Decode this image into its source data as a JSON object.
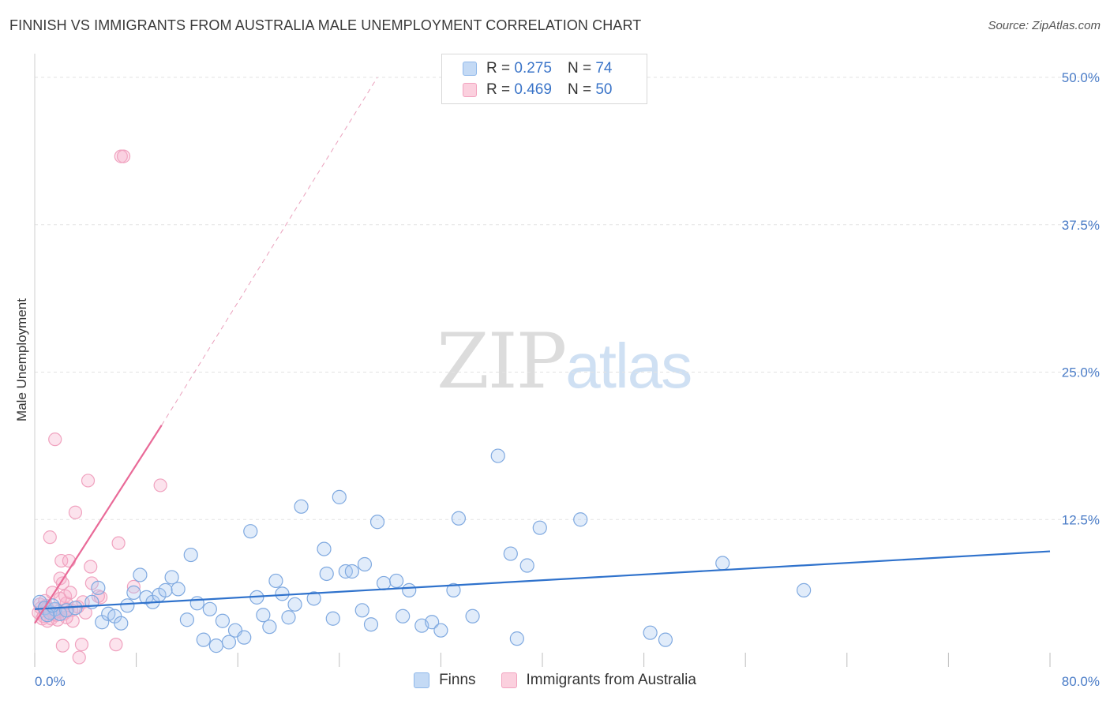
{
  "title": "FINNISH VS IMMIGRANTS FROM AUSTRALIA MALE UNEMPLOYMENT CORRELATION CHART",
  "source": "Source: ZipAtlas.com",
  "watermark": {
    "zip": "ZIP",
    "atlas": "atlas"
  },
  "colors": {
    "finns": "#8fb8ea",
    "finns_line": "#2f72cc",
    "immigrants": "#f2a3bf",
    "immigrants_line": "#e96a98",
    "axis_text": "#4a7cc7"
  },
  "legend": {
    "rows": [
      {
        "r_label": "R =",
        "r_value": "0.275",
        "n_label": "N =",
        "n_value": "74"
      },
      {
        "r_label": "R =",
        "r_value": "0.469",
        "n_label": "N =",
        "n_value": "50"
      }
    ]
  },
  "bottom_legend": {
    "finns": "Finns",
    "immigrants": "Immigrants from Australia"
  },
  "chart_data": {
    "type": "scatter",
    "xlabel": "",
    "ylabel": "Male Unemployment",
    "xlim": [
      0,
      80
    ],
    "ylim": [
      0,
      50
    ],
    "y_ticks": [
      12.5,
      25.0,
      37.5,
      50.0
    ],
    "y_tick_labels": [
      "12.5%",
      "25.0%",
      "37.5%",
      "50.0%"
    ],
    "x_tick_labels": {
      "min": "0.0%",
      "max": "80.0%"
    },
    "grid": true,
    "series": [
      {
        "name": "Finns",
        "r": 0.275,
        "n": 74,
        "trend": {
          "x": [
            0,
            80
          ],
          "y": [
            4.9,
            9.8
          ],
          "dashed": false
        },
        "points": [
          [
            0.4,
            5.5
          ],
          [
            0.8,
            5.0
          ],
          [
            1.2,
            4.6
          ],
          [
            1.6,
            4.9
          ],
          [
            2.0,
            4.5
          ],
          [
            2.5,
            4.8
          ],
          [
            3.2,
            5.0
          ],
          [
            4.5,
            5.5
          ],
          [
            5.0,
            6.7
          ],
          [
            5.3,
            3.8
          ],
          [
            5.8,
            4.5
          ],
          [
            6.3,
            4.3
          ],
          [
            6.8,
            3.7
          ],
          [
            7.3,
            5.2
          ],
          [
            7.8,
            6.3
          ],
          [
            8.3,
            7.8
          ],
          [
            8.8,
            5.9
          ],
          [
            9.3,
            5.5
          ],
          [
            9.8,
            6.1
          ],
          [
            10.3,
            6.5
          ],
          [
            10.8,
            7.6
          ],
          [
            11.3,
            6.6
          ],
          [
            12.0,
            4.0
          ],
          [
            12.3,
            9.5
          ],
          [
            12.8,
            5.4
          ],
          [
            13.3,
            2.3
          ],
          [
            13.8,
            4.9
          ],
          [
            14.3,
            1.8
          ],
          [
            14.8,
            3.9
          ],
          [
            15.3,
            2.1
          ],
          [
            15.8,
            3.1
          ],
          [
            16.5,
            2.5
          ],
          [
            17.0,
            11.5
          ],
          [
            17.5,
            5.9
          ],
          [
            18.0,
            4.4
          ],
          [
            18.5,
            3.4
          ],
          [
            19.0,
            7.3
          ],
          [
            19.5,
            6.2
          ],
          [
            20.0,
            4.2
          ],
          [
            20.5,
            5.3
          ],
          [
            21.0,
            13.6
          ],
          [
            22.0,
            5.8
          ],
          [
            22.8,
            10.0
          ],
          [
            23.0,
            7.9
          ],
          [
            23.5,
            4.1
          ],
          [
            24.0,
            14.4
          ],
          [
            24.5,
            8.1
          ],
          [
            25.0,
            8.1
          ],
          [
            25.8,
            4.8
          ],
          [
            26.0,
            8.7
          ],
          [
            26.5,
            3.6
          ],
          [
            27.0,
            12.3
          ],
          [
            27.5,
            7.1
          ],
          [
            28.5,
            7.3
          ],
          [
            29.0,
            4.3
          ],
          [
            29.5,
            6.5
          ],
          [
            30.5,
            3.5
          ],
          [
            31.3,
            3.8
          ],
          [
            32.0,
            3.1
          ],
          [
            33.0,
            6.5
          ],
          [
            33.4,
            12.6
          ],
          [
            34.5,
            4.3
          ],
          [
            36.5,
            17.9
          ],
          [
            37.5,
            9.6
          ],
          [
            38.0,
            2.4
          ],
          [
            38.8,
            8.6
          ],
          [
            39.8,
            11.8
          ],
          [
            43.0,
            12.5
          ],
          [
            48.5,
            2.9
          ],
          [
            49.7,
            2.3
          ],
          [
            54.2,
            8.8
          ],
          [
            60.6,
            6.5
          ],
          [
            1.0,
            4.4
          ],
          [
            1.4,
            5.2
          ]
        ]
      },
      {
        "name": "Immigrants from Australia",
        "r": 0.469,
        "n": 50,
        "trend": {
          "x": [
            0,
            10.0
          ],
          "y": [
            3.7,
            20.5
          ],
          "dashed": false,
          "extension": {
            "x": [
              10.0,
              27.0
            ],
            "y": [
              20.5,
              50.0
            ],
            "dashed": true
          }
        },
        "points": [
          [
            0.3,
            4.6
          ],
          [
            0.5,
            5.0
          ],
          [
            0.7,
            4.3
          ],
          [
            0.9,
            5.2
          ],
          [
            1.1,
            4.8
          ],
          [
            1.3,
            4.1
          ],
          [
            1.5,
            4.9
          ],
          [
            1.6,
            19.3
          ],
          [
            1.7,
            4.4
          ],
          [
            1.9,
            4.7
          ],
          [
            2.0,
            7.5
          ],
          [
            2.1,
            9.0
          ],
          [
            2.2,
            1.8
          ],
          [
            2.3,
            4.5
          ],
          [
            2.4,
            6.0
          ],
          [
            2.5,
            5.4
          ],
          [
            2.6,
            4.9
          ],
          [
            2.7,
            9.0
          ],
          [
            2.8,
            6.3
          ],
          [
            2.9,
            4.8
          ],
          [
            3.0,
            3.9
          ],
          [
            3.2,
            13.1
          ],
          [
            3.5,
            0.8
          ],
          [
            3.7,
            1.9
          ],
          [
            4.2,
            15.8
          ],
          [
            4.4,
            8.5
          ],
          [
            4.5,
            7.1
          ],
          [
            5.2,
            5.9
          ],
          [
            6.4,
            1.9
          ],
          [
            6.6,
            10.5
          ],
          [
            6.8,
            43.3
          ],
          [
            7.0,
            43.3
          ],
          [
            7.8,
            6.8
          ],
          [
            9.9,
            15.4
          ],
          [
            0.4,
            5.3
          ],
          [
            0.6,
            4.1
          ],
          [
            0.8,
            5.6
          ],
          [
            1.0,
            3.9
          ],
          [
            1.2,
            11.0
          ],
          [
            1.4,
            6.3
          ],
          [
            1.8,
            4.0
          ],
          [
            2.0,
            5.8
          ],
          [
            2.2,
            7.1
          ],
          [
            2.5,
            4.2
          ],
          [
            3.4,
            5.1
          ],
          [
            3.8,
            5.5
          ],
          [
            4.0,
            4.6
          ],
          [
            5.0,
            6.0
          ],
          [
            1.0,
            5.0
          ],
          [
            1.5,
            4.5
          ]
        ]
      }
    ]
  }
}
